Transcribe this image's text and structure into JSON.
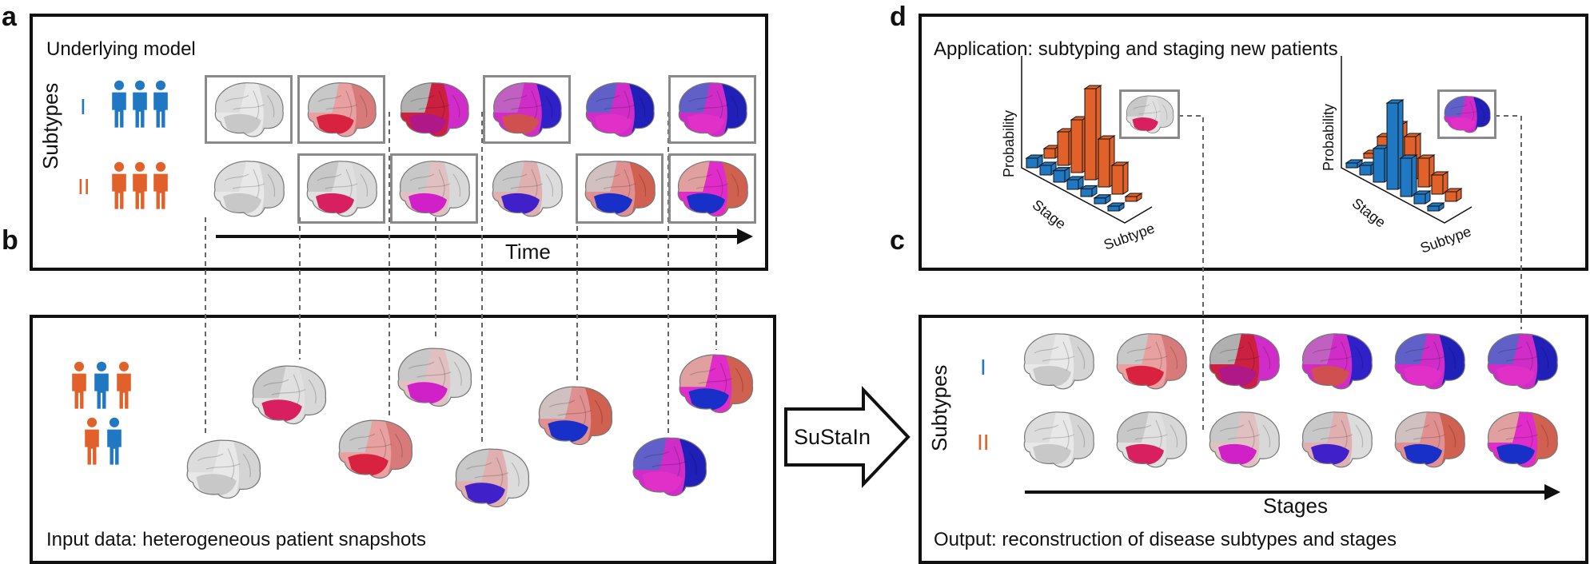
{
  "panels": {
    "a": {
      "letter": "a",
      "title": "Underlying model",
      "axis_label": "Time",
      "subtypes_label": "Subtypes",
      "roman": [
        "I",
        "II"
      ]
    },
    "b": {
      "letter": "b",
      "title": "Input data: heterogeneous patient snapshots"
    },
    "c": {
      "letter": "c",
      "title": "Output: reconstruction of disease subtypes and stages",
      "axis_label": "Stages",
      "subtypes_label": "Subtypes",
      "roman": [
        "I",
        "II"
      ]
    },
    "d": {
      "letter": "d",
      "title": "Application: subtyping and staging new patients",
      "chart1": {
        "ylabel": "Probability",
        "xlabel": "Stage",
        "zlabel": "Subtype"
      },
      "chart2": {
        "ylabel": "Probability",
        "xlabel": "Stage",
        "zlabel": "Subtype"
      }
    }
  },
  "arrow_label": "SuStaIn",
  "colors": {
    "subtype_I": "#1f78c1",
    "subtype_II": "#e0622a",
    "frame": "#8a8a8a",
    "connector": "#666666"
  },
  "chart_data": [
    {
      "type": "bar",
      "title": "",
      "xlabel": "Stage",
      "ylabel": "Probability",
      "zlabel": "Subtype",
      "series": [
        {
          "values": [
            0.1,
            0.35,
            0.55,
            0.95,
            0.5,
            0.3,
            0.05
          ]
        },
        {
          "values": [
            0.1,
            0.1,
            0.12,
            0.1,
            0.08,
            0.06,
            0.05
          ]
        }
      ]
    },
    {
      "type": "bar",
      "title": "",
      "xlabel": "Stage",
      "ylabel": "Probability",
      "zlabel": "Subtype",
      "series": [
        {
          "values": [
            0.05,
            0.3,
            0.5,
            0.45,
            0.3,
            0.2,
            0.1
          ]
        },
        {
          "values": [
            0.05,
            0.1,
            0.35,
            0.9,
            0.4,
            0.1,
            0.05
          ]
        }
      ]
    }
  ]
}
